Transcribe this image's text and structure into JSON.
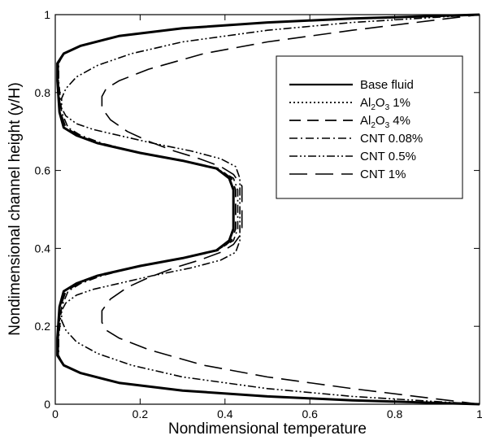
{
  "chart_data": {
    "type": "line",
    "title": "",
    "xlabel": "Nondimensional temperature",
    "ylabel": "Nondimensional channel height (y/H)",
    "xlim": [
      0,
      1
    ],
    "ylim": [
      0,
      1
    ],
    "xticks": [
      "0",
      "0.2",
      "0.4",
      "0.6",
      "0.8",
      "1"
    ],
    "yticks": [
      "0",
      "0.2",
      "0.4",
      "0.6",
      "0.8",
      "1"
    ],
    "grid": false,
    "legend_placement": "top-right",
    "series": [
      {
        "name": "Base fluid",
        "name_parts": [
          "Base fluid"
        ],
        "dash": "solid",
        "x": [
          1.0,
          0.7,
          0.5,
          0.3,
          0.15,
          0.06,
          0.02,
          0.005,
          0.005,
          0.01,
          0.02,
          0.05,
          0.1,
          0.2,
          0.3,
          0.38,
          0.41,
          0.42,
          0.42,
          0.42,
          0.41,
          0.38,
          0.3,
          0.2,
          0.1,
          0.05,
          0.02,
          0.01,
          0.005,
          0.005,
          0.02,
          0.06,
          0.15,
          0.3,
          0.5,
          0.7,
          1.0
        ],
        "y": [
          0.0,
          0.01,
          0.02,
          0.035,
          0.055,
          0.08,
          0.1,
          0.125,
          0.17,
          0.25,
          0.29,
          0.31,
          0.33,
          0.355,
          0.375,
          0.395,
          0.42,
          0.45,
          0.5,
          0.55,
          0.58,
          0.605,
          0.625,
          0.645,
          0.67,
          0.69,
          0.71,
          0.75,
          0.83,
          0.875,
          0.9,
          0.92,
          0.945,
          0.965,
          0.98,
          0.99,
          1.0
        ]
      },
      {
        "name": "Al2O3 1%",
        "name_parts": [
          "Al",
          "2",
          "O",
          "3",
          " 1%"
        ],
        "dash": "dotted",
        "x": [
          1.0,
          0.7,
          0.5,
          0.3,
          0.15,
          0.06,
          0.02,
          0.005,
          0.005,
          0.01,
          0.02,
          0.05,
          0.1,
          0.2,
          0.3,
          0.38,
          0.41,
          0.42,
          0.42,
          0.42,
          0.41,
          0.38,
          0.3,
          0.2,
          0.1,
          0.05,
          0.02,
          0.01,
          0.005,
          0.005,
          0.02,
          0.06,
          0.15,
          0.3,
          0.5,
          0.7,
          1.0
        ],
        "y": [
          0.0,
          0.01,
          0.02,
          0.035,
          0.055,
          0.08,
          0.1,
          0.125,
          0.17,
          0.25,
          0.29,
          0.31,
          0.33,
          0.355,
          0.375,
          0.395,
          0.42,
          0.45,
          0.5,
          0.55,
          0.58,
          0.605,
          0.625,
          0.645,
          0.67,
          0.69,
          0.71,
          0.75,
          0.83,
          0.875,
          0.9,
          0.92,
          0.945,
          0.965,
          0.98,
          0.99,
          1.0
        ]
      },
      {
        "name": "Al2O3 4%",
        "name_parts": [
          "Al",
          "2",
          "O",
          "3",
          " 4%"
        ],
        "dash": "dashed",
        "x": [
          1.0,
          0.7,
          0.5,
          0.3,
          0.15,
          0.06,
          0.02,
          0.007,
          0.007,
          0.012,
          0.025,
          0.055,
          0.1,
          0.2,
          0.3,
          0.385,
          0.415,
          0.425,
          0.425,
          0.425,
          0.415,
          0.385,
          0.3,
          0.2,
          0.1,
          0.055,
          0.025,
          0.012,
          0.007,
          0.007,
          0.02,
          0.06,
          0.15,
          0.3,
          0.5,
          0.7,
          1.0
        ],
        "y": [
          0.0,
          0.01,
          0.02,
          0.035,
          0.055,
          0.08,
          0.1,
          0.125,
          0.17,
          0.25,
          0.29,
          0.31,
          0.33,
          0.355,
          0.375,
          0.395,
          0.42,
          0.45,
          0.5,
          0.55,
          0.58,
          0.605,
          0.625,
          0.645,
          0.67,
          0.69,
          0.71,
          0.75,
          0.83,
          0.875,
          0.9,
          0.92,
          0.945,
          0.965,
          0.98,
          0.99,
          1.0
        ]
      },
      {
        "name": "CNT 0.08%",
        "name_parts": [
          "CNT 0.08%"
        ],
        "dash": "dashdot",
        "x": [
          1.0,
          0.7,
          0.5,
          0.3,
          0.15,
          0.06,
          0.02,
          0.008,
          0.008,
          0.015,
          0.03,
          0.06,
          0.11,
          0.2,
          0.3,
          0.38,
          0.42,
          0.43,
          0.43,
          0.43,
          0.42,
          0.38,
          0.3,
          0.2,
          0.11,
          0.06,
          0.03,
          0.015,
          0.008,
          0.008,
          0.02,
          0.06,
          0.15,
          0.3,
          0.5,
          0.7,
          1.0
        ],
        "y": [
          0.0,
          0.01,
          0.02,
          0.035,
          0.055,
          0.08,
          0.1,
          0.125,
          0.17,
          0.25,
          0.29,
          0.31,
          0.33,
          0.355,
          0.375,
          0.395,
          0.42,
          0.45,
          0.5,
          0.55,
          0.58,
          0.605,
          0.625,
          0.645,
          0.67,
          0.69,
          0.71,
          0.75,
          0.83,
          0.875,
          0.9,
          0.92,
          0.945,
          0.965,
          0.98,
          0.99,
          1.0
        ]
      },
      {
        "name": "CNT 0.5%",
        "name_parts": [
          "CNT 0.5%"
        ],
        "dash": "dashdotdot",
        "x": [
          1.0,
          0.85,
          0.7,
          0.5,
          0.3,
          0.18,
          0.1,
          0.05,
          0.025,
          0.015,
          0.015,
          0.025,
          0.05,
          0.09,
          0.15,
          0.23,
          0.32,
          0.39,
          0.425,
          0.435,
          0.435,
          0.435,
          0.425,
          0.39,
          0.32,
          0.23,
          0.15,
          0.09,
          0.05,
          0.025,
          0.015,
          0.015,
          0.025,
          0.05,
          0.1,
          0.18,
          0.3,
          0.5,
          0.7,
          0.85,
          1.0
        ],
        "y": [
          0.0,
          0.01,
          0.02,
          0.04,
          0.07,
          0.1,
          0.13,
          0.16,
          0.19,
          0.215,
          0.24,
          0.26,
          0.28,
          0.295,
          0.31,
          0.33,
          0.35,
          0.37,
          0.39,
          0.42,
          0.5,
          0.58,
          0.61,
          0.63,
          0.65,
          0.67,
          0.69,
          0.705,
          0.72,
          0.74,
          0.76,
          0.785,
          0.81,
          0.84,
          0.87,
          0.9,
          0.93,
          0.96,
          0.98,
          0.99,
          1.0
        ]
      },
      {
        "name": "CNT 1%",
        "name_parts": [
          "CNT 1%"
        ],
        "dash": "longdash",
        "x": [
          1.0,
          0.85,
          0.7,
          0.5,
          0.35,
          0.22,
          0.15,
          0.12,
          0.11,
          0.11,
          0.13,
          0.17,
          0.22,
          0.28,
          0.34,
          0.39,
          0.42,
          0.44,
          0.44,
          0.44,
          0.42,
          0.39,
          0.34,
          0.28,
          0.22,
          0.17,
          0.13,
          0.11,
          0.11,
          0.12,
          0.15,
          0.22,
          0.35,
          0.5,
          0.7,
          0.85,
          1.0
        ],
        "y": [
          0.0,
          0.02,
          0.04,
          0.07,
          0.1,
          0.14,
          0.17,
          0.19,
          0.21,
          0.24,
          0.27,
          0.3,
          0.325,
          0.35,
          0.37,
          0.39,
          0.41,
          0.44,
          0.5,
          0.56,
          0.59,
          0.61,
          0.63,
          0.65,
          0.675,
          0.7,
          0.73,
          0.76,
          0.79,
          0.81,
          0.83,
          0.86,
          0.9,
          0.93,
          0.96,
          0.98,
          1.0
        ]
      }
    ]
  }
}
